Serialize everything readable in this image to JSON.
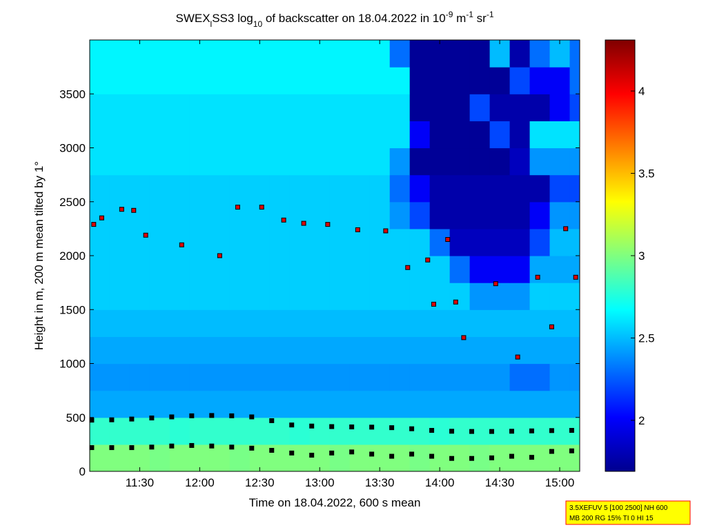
{
  "chart_data": {
    "type": "heatmap",
    "title_parts": [
      {
        "text": "SWEX"
      },
      {
        "text": "l",
        "sub": true
      },
      {
        "text": "SS3 log"
      },
      {
        "text": "10",
        "sub": true
      },
      {
        "text": " of backscatter on 18.04.2022 in 10"
      },
      {
        "text": "-9",
        "sup": true
      },
      {
        "text": " m"
      },
      {
        "text": "-1",
        "sup": true
      },
      {
        "text": " sr"
      },
      {
        "text": "-1",
        "sup": true
      }
    ],
    "xlabel": "Time on 18.04.2022, 600 s mean",
    "ylabel": "Height in m, 200 m mean tilted by 1°",
    "xlim": [
      665,
      910
    ],
    "xticks": [
      {
        "value": 690,
        "label": "11:30"
      },
      {
        "value": 720,
        "label": "12:00"
      },
      {
        "value": 750,
        "label": "12:30"
      },
      {
        "value": 780,
        "label": "13:00"
      },
      {
        "value": 810,
        "label": "13:30"
      },
      {
        "value": 840,
        "label": "14:00"
      },
      {
        "value": 870,
        "label": "14:30"
      },
      {
        "value": 900,
        "label": "15:00"
      }
    ],
    "ylim": [
      0,
      4000
    ],
    "yticks": [
      0,
      500,
      1000,
      1500,
      2000,
      2500,
      3000,
      3500
    ],
    "clim": [
      1.69,
      4.31
    ],
    "cticks": [
      2,
      2.5,
      3,
      3.5,
      4
    ],
    "colormap": "jet",
    "x": [
      665,
      675,
      685,
      695,
      705,
      715,
      725,
      735,
      745,
      755,
      765,
      775,
      785,
      795,
      805,
      815,
      825,
      835,
      845,
      855,
      865,
      875,
      885,
      895,
      905
    ],
    "y": [
      0,
      250,
      500,
      750,
      1000,
      1250,
      1500,
      1750,
      2000,
      2250,
      2500,
      2750,
      3000,
      3250,
      3500,
      3750
    ],
    "z": [
      [
        3.0,
        3.0,
        3.0,
        2.98,
        3.0,
        3.0,
        3.0,
        2.98,
        3.0,
        3.0,
        3.0,
        3.0,
        2.98,
        3.0,
        3.0,
        3.0,
        2.98,
        3.0,
        3.0,
        2.98,
        3.0,
        3.0,
        3.0,
        3.0,
        3.0
      ],
      [
        2.8,
        2.8,
        2.8,
        2.8,
        2.78,
        2.8,
        2.8,
        2.8,
        2.8,
        2.8,
        2.78,
        2.8,
        2.8,
        2.8,
        2.8,
        2.8,
        2.8,
        2.78,
        2.8,
        2.8,
        2.8,
        2.8,
        2.8,
        2.8,
        2.8
      ],
      [
        2.45,
        2.45,
        2.45,
        2.45,
        2.45,
        2.45,
        2.45,
        2.45,
        2.45,
        2.45,
        2.45,
        2.45,
        2.45,
        2.45,
        2.45,
        2.45,
        2.45,
        2.45,
        2.45,
        2.45,
        2.45,
        2.45,
        2.45,
        2.45,
        2.45
      ],
      [
        2.4,
        2.4,
        2.4,
        2.4,
        2.4,
        2.4,
        2.4,
        2.4,
        2.4,
        2.4,
        2.4,
        2.4,
        2.4,
        2.4,
        2.4,
        2.4,
        2.4,
        2.4,
        2.4,
        2.4,
        2.4,
        2.3,
        2.3,
        2.4,
        2.4
      ],
      [
        2.45,
        2.45,
        2.45,
        2.45,
        2.45,
        2.45,
        2.45,
        2.45,
        2.45,
        2.45,
        2.45,
        2.45,
        2.45,
        2.45,
        2.45,
        2.45,
        2.45,
        2.45,
        2.45,
        2.45,
        2.45,
        2.45,
        2.45,
        2.45,
        2.45
      ],
      [
        2.5,
        2.5,
        2.5,
        2.5,
        2.5,
        2.5,
        2.5,
        2.5,
        2.5,
        2.5,
        2.5,
        2.5,
        2.5,
        2.5,
        2.5,
        2.5,
        2.5,
        2.5,
        2.5,
        2.5,
        2.5,
        2.5,
        2.5,
        2.5,
        2.5
      ],
      [
        2.55,
        2.55,
        2.55,
        2.55,
        2.55,
        2.55,
        2.55,
        2.55,
        2.55,
        2.55,
        2.55,
        2.55,
        2.55,
        2.55,
        2.55,
        2.55,
        2.55,
        2.55,
        2.55,
        2.4,
        2.4,
        2.4,
        2.55,
        2.55,
        2.55
      ],
      [
        2.55,
        2.55,
        2.55,
        2.55,
        2.55,
        2.55,
        2.55,
        2.55,
        2.55,
        2.55,
        2.55,
        2.55,
        2.55,
        2.55,
        2.55,
        2.55,
        2.55,
        2.55,
        2.3,
        2.0,
        2.0,
        2.0,
        2.45,
        2.45,
        2.45
      ],
      [
        2.55,
        2.55,
        2.55,
        2.55,
        2.55,
        2.55,
        2.55,
        2.55,
        2.55,
        2.55,
        2.55,
        2.55,
        2.55,
        2.55,
        2.55,
        2.55,
        2.55,
        2.3,
        1.85,
        1.85,
        1.85,
        1.85,
        2.2,
        2.5,
        2.5
      ],
      [
        2.55,
        2.55,
        2.55,
        2.55,
        2.55,
        2.55,
        2.55,
        2.55,
        2.55,
        2.55,
        2.55,
        2.55,
        2.55,
        2.55,
        2.55,
        2.4,
        2.2,
        1.8,
        1.8,
        1.8,
        1.8,
        1.8,
        2.0,
        2.4,
        2.4
      ],
      [
        2.55,
        2.55,
        2.55,
        2.55,
        2.55,
        2.55,
        2.55,
        2.55,
        2.55,
        2.55,
        2.55,
        2.55,
        2.55,
        2.55,
        2.55,
        2.3,
        2.0,
        1.8,
        1.8,
        1.8,
        1.8,
        1.8,
        1.8,
        2.2,
        2.2
      ],
      [
        2.6,
        2.6,
        2.6,
        2.6,
        2.6,
        2.6,
        2.6,
        2.6,
        2.6,
        2.6,
        2.6,
        2.6,
        2.6,
        2.6,
        2.6,
        2.4,
        1.75,
        1.75,
        1.75,
        1.75,
        1.75,
        1.85,
        2.4,
        2.4,
        2.4
      ],
      [
        2.6,
        2.6,
        2.6,
        2.6,
        2.6,
        2.6,
        2.6,
        2.6,
        2.6,
        2.6,
        2.6,
        2.6,
        2.6,
        2.6,
        2.6,
        2.6,
        2.0,
        1.75,
        1.75,
        1.75,
        2.2,
        1.8,
        2.6,
        2.6,
        2.6
      ],
      [
        2.6,
        2.6,
        2.6,
        2.6,
        2.6,
        2.6,
        2.6,
        2.6,
        2.6,
        2.6,
        2.6,
        2.6,
        2.6,
        2.6,
        2.6,
        2.6,
        1.75,
        1.75,
        1.75,
        2.2,
        1.8,
        1.8,
        1.8,
        2.0,
        2.2
      ],
      [
        2.65,
        2.65,
        2.65,
        2.65,
        2.65,
        2.65,
        2.65,
        2.65,
        2.65,
        2.65,
        2.65,
        2.65,
        2.65,
        2.65,
        2.65,
        2.65,
        1.75,
        1.75,
        1.75,
        1.75,
        1.75,
        2.2,
        2.0,
        2.0,
        2.3
      ],
      [
        2.65,
        2.65,
        2.65,
        2.65,
        2.65,
        2.65,
        2.65,
        2.65,
        2.65,
        2.65,
        2.65,
        2.65,
        2.65,
        2.65,
        2.65,
        2.3,
        1.75,
        1.75,
        1.75,
        1.75,
        2.5,
        1.8,
        2.3,
        2.5,
        2.3
      ]
    ],
    "layers": [
      {
        "color": "#000000",
        "x": [
          666,
          676,
          686,
          696,
          706,
          716,
          726,
          736,
          746,
          756,
          766,
          776,
          786,
          796,
          806,
          816,
          826,
          836,
          846,
          856,
          866,
          876,
          886,
          896,
          906
        ],
        "y": [
          475,
          478,
          485,
          495,
          505,
          515,
          518,
          515,
          505,
          470,
          430,
          420,
          415,
          412,
          410,
          405,
          395,
          380,
          372,
          370,
          370,
          372,
          375,
          378,
          380
        ]
      },
      {
        "color": "#000000",
        "x": [
          666,
          676,
          686,
          696,
          706,
          716,
          726,
          736,
          746,
          756,
          766,
          776,
          786,
          796,
          806,
          816,
          826,
          836,
          846,
          856,
          866,
          876,
          886,
          896,
          906
        ],
        "y": [
          220,
          220,
          220,
          225,
          235,
          240,
          235,
          225,
          215,
          195,
          170,
          150,
          170,
          180,
          160,
          140,
          160,
          140,
          120,
          120,
          125,
          140,
          130,
          185,
          190
        ]
      },
      {
        "color": "#dd0000",
        "x": [
          667,
          671,
          681,
          687,
          693,
          711,
          730,
          739,
          751,
          762,
          772,
          784,
          799,
          813,
          824,
          834,
          844,
          837,
          848,
          852,
          868,
          879,
          889,
          896,
          903,
          908
        ],
        "y": [
          2290,
          2350,
          2430,
          2420,
          2190,
          2100,
          2000,
          2450,
          2450,
          2330,
          2300,
          2290,
          2240,
          2230,
          1890,
          1960,
          2150,
          1550,
          1570,
          1240,
          1740,
          1060,
          1800,
          1340,
          2250,
          1800
        ]
      }
    ],
    "annotation": [
      "3.5XEFUV 5 [100 2500] NH 600",
      "MB 200 RG 15% TI 0 HI 15"
    ]
  }
}
